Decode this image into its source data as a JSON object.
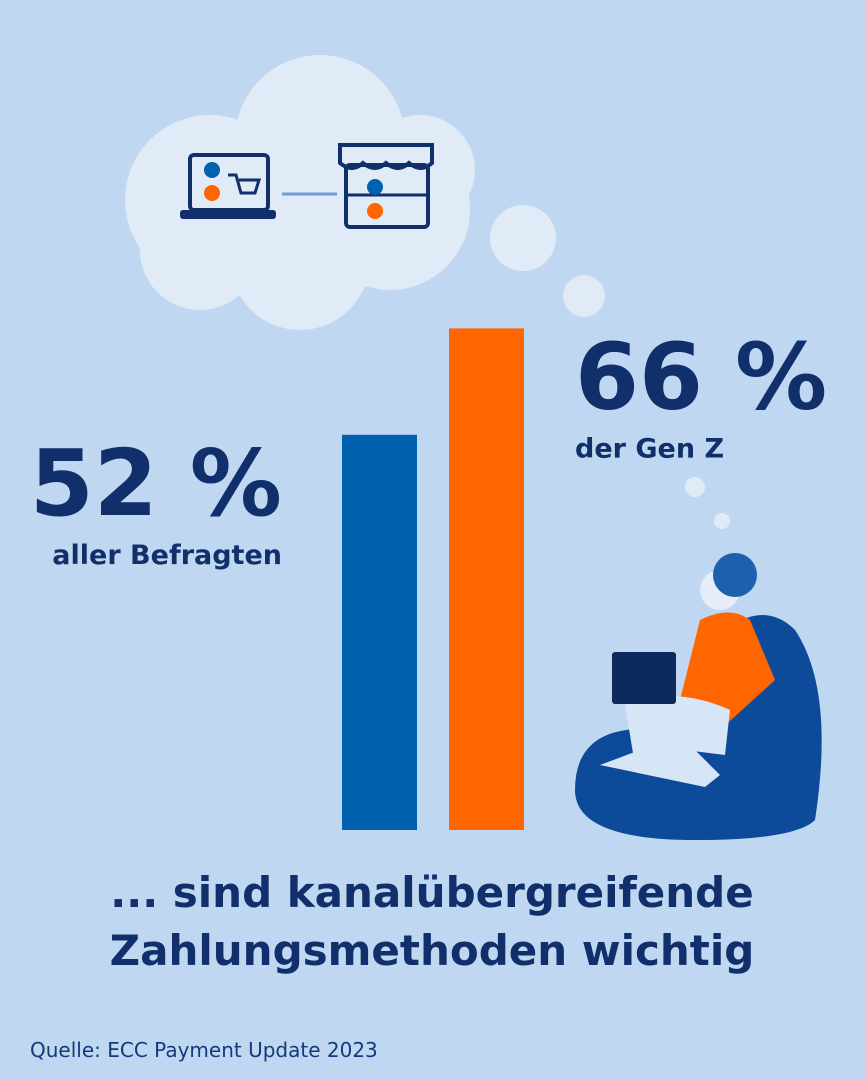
{
  "chart_data": {
    "type": "bar",
    "categories": [
      "aller Befragten",
      "der Gen Z"
    ],
    "values": [
      52,
      66
    ],
    "value_labels": [
      "52 %",
      "66 %"
    ],
    "colors": [
      "#0061ae",
      "#ff6600"
    ],
    "caption": [
      "... sind kanalübergreifende",
      "Zahlungsmethoden wichtig"
    ],
    "source": "Quelle: ECC Payment Update 2023"
  }
}
